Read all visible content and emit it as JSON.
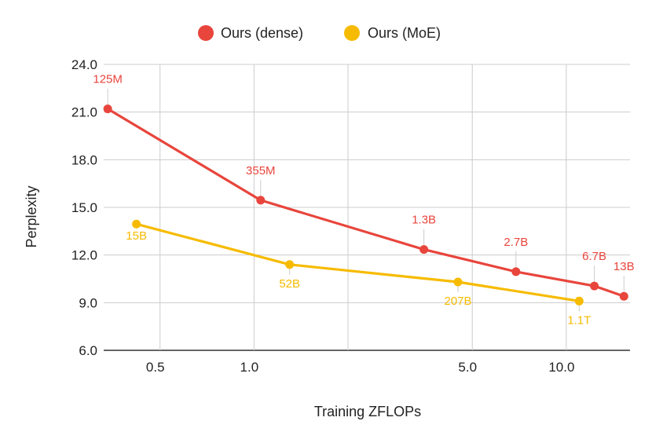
{
  "chart_data": {
    "type": "line",
    "title": "",
    "xlabel": "Training ZFLOPs",
    "ylabel": "Perplexity",
    "x_scale": "log",
    "xlim": [
      0.33,
      16.0
    ],
    "ylim": [
      6.0,
      24.0
    ],
    "x_ticks": [
      {
        "value": 0.5,
        "label": "0.5"
      },
      {
        "value": 1.0,
        "label": "1.0"
      },
      {
        "value": 5.0,
        "label": "5.0"
      },
      {
        "value": 10.0,
        "label": "10.0"
      }
    ],
    "x_minor_ticks": [
      0.5,
      1.0,
      2.0,
      5.0,
      10.0
    ],
    "y_ticks": [
      {
        "value": 6,
        "label": "6.0"
      },
      {
        "value": 9,
        "label": "9.0"
      },
      {
        "value": 12,
        "label": "12.0"
      },
      {
        "value": 15,
        "label": "15.0"
      },
      {
        "value": 18,
        "label": "18.0"
      },
      {
        "value": 21,
        "label": "21.0"
      },
      {
        "value": 24,
        "label": "24.0"
      }
    ],
    "legend_position": "top-center",
    "series": [
      {
        "name": "Ours (dense)",
        "color": "#e8453c",
        "points": [
          {
            "x": 0.34,
            "y": 21.2,
            "label": "125M",
            "label_pos": "above"
          },
          {
            "x": 1.05,
            "y": 15.45,
            "label": "355M",
            "label_pos": "above"
          },
          {
            "x": 3.5,
            "y": 12.35,
            "label": "1.3B",
            "label_pos": "above"
          },
          {
            "x": 6.9,
            "y": 10.95,
            "label": "2.7B",
            "label_pos": "above"
          },
          {
            "x": 12.3,
            "y": 10.05,
            "label": "6.7B",
            "label_pos": "above"
          },
          {
            "x": 15.3,
            "y": 9.4,
            "label": "13B",
            "label_pos": "above"
          }
        ]
      },
      {
        "name": "Ours (MoE)",
        "color": "#f6bb00",
        "points": [
          {
            "x": 0.42,
            "y": 13.95,
            "label": "15B",
            "label_pos": "below-right"
          },
          {
            "x": 1.3,
            "y": 11.4,
            "label": "52B",
            "label_pos": "below"
          },
          {
            "x": 4.5,
            "y": 10.3,
            "label": "207B",
            "label_pos": "below"
          },
          {
            "x": 11.0,
            "y": 9.1,
            "label": "1.1T",
            "label_pos": "below"
          }
        ]
      }
    ]
  }
}
